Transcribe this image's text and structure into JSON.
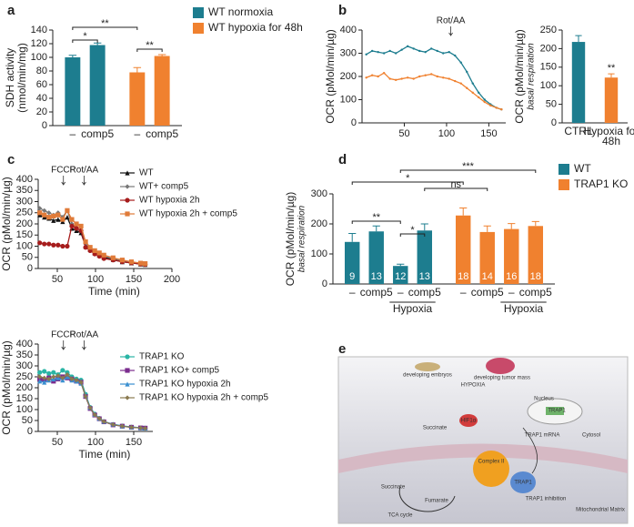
{
  "panel_labels": [
    "a",
    "b",
    "c",
    "d",
    "e"
  ],
  "chart_data": [
    {
      "type": "bar",
      "ylabel": [
        "SDH activity",
        "(nmol/min/mg)"
      ],
      "categories": [
        "–",
        "comp5"
      ],
      "ylim": [
        0,
        140
      ],
      "yticks": [
        0,
        20,
        40,
        60,
        80,
        100,
        120,
        140
      ],
      "series": [
        {
          "name": "WT normoxia",
          "color": "#1d7d8f",
          "values": [
            100,
            118
          ],
          "errors": [
            3,
            3
          ]
        },
        {
          "name": "WT hypoxia for 48h",
          "color": "#f0812f",
          "values": [
            78,
            102
          ],
          "errors": [
            7,
            2
          ]
        }
      ],
      "significance": [
        "*",
        "**",
        "**"
      ]
    },
    {
      "type": "line",
      "ylabel": [
        "OCR (pMol/min/µg)"
      ],
      "xlim": [
        0,
        170
      ],
      "xticks": [
        50,
        100,
        150
      ],
      "ylim": [
        0,
        400
      ],
      "yticks": [
        0,
        100,
        200,
        300,
        400
      ],
      "annotations": [
        {
          "label": "Rot/AA",
          "x": 105
        }
      ],
      "x": [
        5,
        12,
        19,
        26,
        33,
        40,
        47,
        54,
        61,
        68,
        75,
        82,
        89,
        96,
        103,
        110,
        117,
        124,
        131,
        138,
        145,
        152,
        159,
        165
      ],
      "series": [
        {
          "color": "#1d7d8f",
          "values": [
            295,
            310,
            305,
            300,
            310,
            300,
            315,
            330,
            320,
            310,
            305,
            320,
            310,
            300,
            305,
            290,
            260,
            220,
            170,
            130,
            100,
            80,
            65,
            58
          ]
        },
        {
          "color": "#f0812f",
          "values": [
            195,
            205,
            200,
            215,
            190,
            185,
            190,
            195,
            190,
            200,
            205,
            210,
            200,
            195,
            190,
            180,
            170,
            150,
            130,
            110,
            90,
            75,
            65,
            58
          ]
        }
      ]
    },
    {
      "type": "bar",
      "ylabel": [
        "OCR (pMol/min/µg)"
      ],
      "ylabel_note": "basal respiration",
      "categories": [
        "CTRL",
        "Hypoxia for 48h"
      ],
      "ylim": [
        0,
        250
      ],
      "yticks": [
        0,
        50,
        100,
        150,
        200,
        250
      ],
      "values": [
        218,
        122
      ],
      "errors": [
        17,
        10
      ],
      "colors": [
        "#1d7d8f",
        "#f0812f"
      ],
      "value_marks": [
        null,
        "**"
      ]
    },
    {
      "type": "line",
      "ylabel": [
        "OCR (pMol/min/µg)"
      ],
      "xlabel": "Time (min)",
      "xlim": [
        25,
        200
      ],
      "xticks": [
        50,
        100,
        150,
        200
      ],
      "ylim": [
        0,
        400
      ],
      "yticks": [
        0,
        50,
        100,
        150,
        200,
        250,
        300,
        350,
        400
      ],
      "annotations": [
        {
          "label": "FCCP",
          "x": 58
        },
        {
          "label": "Rot/AA",
          "x": 85
        }
      ],
      "x": [
        27,
        33,
        39,
        45,
        51,
        57,
        63,
        69,
        75,
        81,
        87,
        93,
        99,
        105,
        111,
        123,
        135,
        147,
        159,
        165
      ],
      "series": [
        {
          "name": "WT",
          "color": "#111111",
          "marker": "triangle",
          "values": [
            240,
            230,
            225,
            215,
            220,
            210,
            230,
            180,
            170,
            160,
            100,
            85,
            70,
            60,
            50,
            40,
            30,
            25,
            20,
            18
          ]
        },
        {
          "name": "WT+ comp5",
          "color": "#777777",
          "marker": "diamond",
          "values": [
            270,
            260,
            250,
            240,
            250,
            230,
            260,
            200,
            180,
            170,
            110,
            90,
            75,
            65,
            55,
            45,
            35,
            28,
            22,
            20
          ]
        },
        {
          "name": "WT hypoxia 2h",
          "color": "#a61c1c",
          "marker": "circle",
          "values": [
            115,
            110,
            110,
            105,
            105,
            100,
            100,
            190,
            180,
            170,
            95,
            80,
            65,
            55,
            45,
            38,
            30,
            25,
            20,
            18
          ]
        },
        {
          "name": "WT hypoxia 2h + comp5",
          "color": "#e07b39",
          "marker": "square",
          "values": [
            250,
            240,
            230,
            235,
            240,
            220,
            260,
            220,
            200,
            190,
            120,
            95,
            80,
            70,
            60,
            48,
            38,
            30,
            24,
            22
          ]
        }
      ]
    },
    {
      "type": "line",
      "ylabel": [
        "OCR (pMol/min/µg)"
      ],
      "xlabel": "Time (min)",
      "xlim": [
        25,
        175
      ],
      "xticks": [
        50,
        100,
        150
      ],
      "ylim": [
        0,
        400
      ],
      "yticks": [
        0,
        50,
        100,
        150,
        200,
        250,
        300,
        350,
        400
      ],
      "annotations": [
        {
          "label": "FCCP",
          "x": 58
        },
        {
          "label": "Rot/AA",
          "x": 85
        }
      ],
      "x": [
        27,
        33,
        39,
        45,
        51,
        57,
        63,
        69,
        75,
        81,
        87,
        93,
        99,
        105,
        111,
        123,
        135,
        147,
        159,
        165
      ],
      "series": [
        {
          "name": "TRAP1 KO",
          "color": "#2ab5a5",
          "marker": "circle",
          "values": [
            270,
            275,
            265,
            270,
            260,
            280,
            270,
            250,
            240,
            235,
            170,
            110,
            80,
            60,
            45,
            32,
            25,
            20,
            16,
            15
          ]
        },
        {
          "name": "TRAP1 KO+ comp5",
          "color": "#7b2d8e",
          "marker": "square",
          "values": [
            240,
            235,
            245,
            230,
            240,
            250,
            245,
            240,
            230,
            225,
            160,
            105,
            75,
            58,
            44,
            30,
            24,
            19,
            16,
            15
          ]
        },
        {
          "name": "TRAP1 KO hypoxia 2h",
          "color": "#3a8fd0",
          "marker": "triangle",
          "values": [
            230,
            225,
            235,
            240,
            245,
            235,
            250,
            235,
            230,
            220,
            165,
            110,
            78,
            60,
            46,
            33,
            25,
            20,
            17,
            15
          ]
        },
        {
          "name": "TRAP1 KO hypoxia 2h + comp5",
          "color": "#8a7a50",
          "marker": "diamond",
          "values": [
            250,
            245,
            240,
            250,
            255,
            245,
            260,
            240,
            235,
            225,
            160,
            108,
            76,
            59,
            45,
            31,
            24,
            19,
            16,
            14
          ]
        }
      ]
    },
    {
      "type": "bar",
      "ylabel": [
        "OCR (pMol/min/µg)"
      ],
      "ylabel_note": "basal respiration",
      "categories": [
        "–",
        "comp5",
        "–",
        "comp5"
      ],
      "category_groups": [
        null,
        null,
        "Hypoxia",
        "Hypoxia"
      ],
      "ylim": [
        0,
        300
      ],
      "yticks": [
        0,
        100,
        200,
        300
      ],
      "series": [
        {
          "name": "WT",
          "color": "#1d7d8f",
          "values": [
            140,
            175,
            60,
            178
          ],
          "errors": [
            28,
            18,
            6,
            22
          ],
          "counts": [
            9,
            13,
            12,
            13
          ]
        },
        {
          "name": "TRAP1 KO",
          "color": "#f0812f",
          "values": [
            228,
            173,
            183,
            193
          ],
          "errors": [
            25,
            20,
            18,
            15
          ],
          "counts": [
            18,
            14,
            16,
            18
          ]
        }
      ],
      "significance": [
        "*",
        "ns",
        "***",
        "**",
        "*"
      ]
    }
  ],
  "diagram": {
    "labels": [
      "developing embryos",
      "developing tumor mass",
      "HYPOXIA",
      "Nucleus",
      "HIF1α",
      "TRAP1",
      "TRAP1 mRNA",
      "Succinate",
      "Cytosol",
      "Complex II",
      "TRAP1",
      "Succinate",
      "Fumarate",
      "TCA cycle",
      "TRAP1 inhibition",
      "Mitochondrial Matrix"
    ]
  }
}
